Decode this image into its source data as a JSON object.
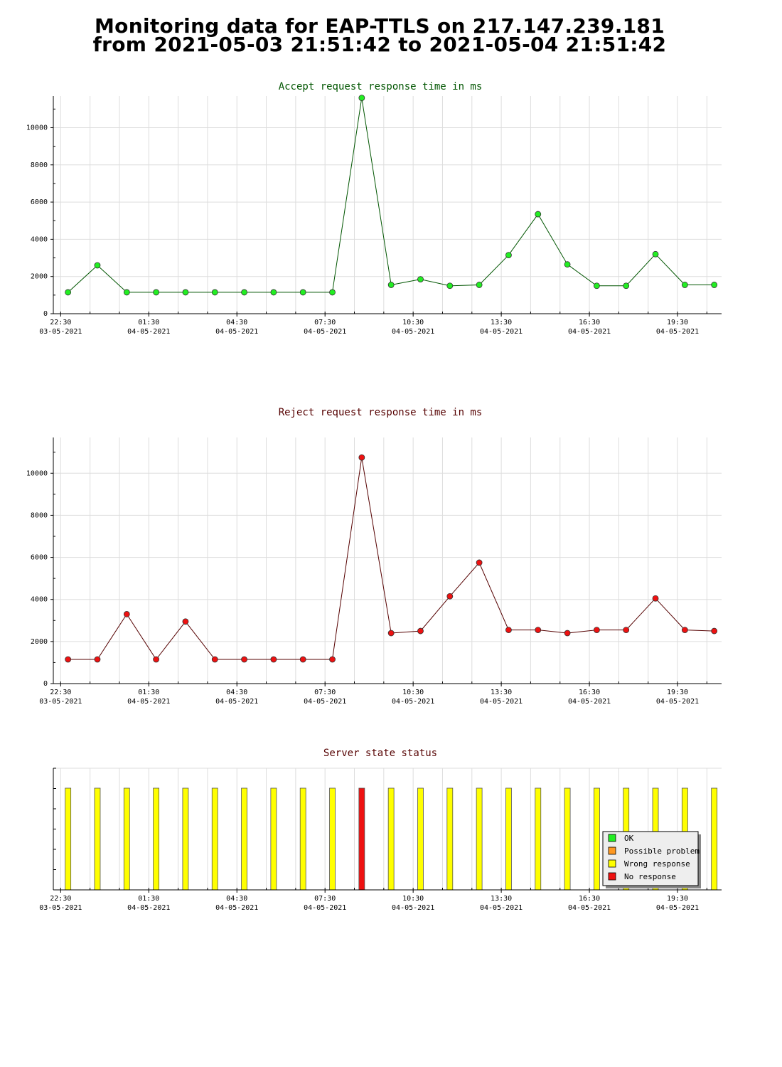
{
  "header": {
    "title_line1": "Monitoring data for EAP-TTLS on 217.147.239.181",
    "title_line2": "from 2021-05-03 21:51:42 to 2021-05-04 21:51:42"
  },
  "colors": {
    "accept_point": "#22ee22",
    "accept_line": "#005500",
    "accept_title": "#005500",
    "reject_point": "#ee1111",
    "reject_line": "#550000",
    "reject_title": "#550000",
    "state_title": "#550000",
    "grid": "#dddddd",
    "ok": "#22ee22",
    "possible_problem": "#ff9922",
    "wrong_response": "#ffff00",
    "no_response": "#ee1111"
  },
  "x_axis": {
    "ticks": [
      {
        "time": "22:30",
        "date": "03-05-2021",
        "hour": 22.5
      },
      {
        "time": "01:30",
        "date": "04-05-2021",
        "hour": 25.5
      },
      {
        "time": "04:30",
        "date": "04-05-2021",
        "hour": 28.5
      },
      {
        "time": "07:30",
        "date": "04-05-2021",
        "hour": 31.5
      },
      {
        "time": "10:30",
        "date": "04-05-2021",
        "hour": 34.5
      },
      {
        "time": "13:30",
        "date": "04-05-2021",
        "hour": 37.5
      },
      {
        "time": "16:30",
        "date": "04-05-2021",
        "hour": 40.5
      },
      {
        "time": "19:30",
        "date": "04-05-2021",
        "hour": 43.5
      }
    ]
  },
  "chart_data": [
    {
      "type": "line",
      "title": "Accept request response time in ms",
      "ylim": [
        0,
        11700
      ],
      "yticks": [
        0,
        2000,
        4000,
        6000,
        8000,
        10000
      ],
      "grid": true,
      "x": [
        22.75,
        23.75,
        24.75,
        25.75,
        26.75,
        27.75,
        28.75,
        29.75,
        30.75,
        31.75,
        32.75,
        33.75,
        34.75,
        35.75,
        36.75,
        37.75,
        38.75,
        39.75,
        40.75,
        41.75,
        42.75,
        43.75,
        44.75
      ],
      "values": [
        1150,
        2600,
        1150,
        1150,
        1150,
        1150,
        1150,
        1150,
        1150,
        1150,
        11600,
        1550,
        1850,
        1500,
        1550,
        3150,
        5350,
        2650,
        1500,
        1500,
        3200,
        1550,
        1550
      ]
    },
    {
      "type": "line",
      "title": "Reject request response time in ms",
      "ylim": [
        0,
        11700
      ],
      "yticks": [
        0,
        2000,
        4000,
        6000,
        8000,
        10000
      ],
      "grid": true,
      "x": [
        22.75,
        23.75,
        24.75,
        25.75,
        26.75,
        27.75,
        28.75,
        29.75,
        30.75,
        31.75,
        32.75,
        33.75,
        34.75,
        35.75,
        36.75,
        37.75,
        38.75,
        39.75,
        40.75,
        41.75,
        42.75,
        43.75,
        44.75
      ],
      "values": [
        1150,
        1150,
        3300,
        1150,
        2950,
        1150,
        1150,
        1150,
        1150,
        1150,
        10750,
        2400,
        2500,
        4150,
        5750,
        2550,
        2550,
        2400,
        2550,
        2550,
        4050,
        2550,
        2500
      ]
    },
    {
      "type": "bar",
      "title": "Server state status",
      "grid": true,
      "x": [
        22.75,
        23.75,
        24.75,
        25.75,
        26.75,
        27.75,
        28.75,
        29.75,
        30.75,
        31.75,
        32.75,
        33.75,
        34.75,
        35.75,
        36.75,
        37.75,
        38.75,
        39.75,
        40.75,
        41.75,
        42.75,
        43.75,
        44.75
      ],
      "states": [
        "wrong_response",
        "wrong_response",
        "wrong_response",
        "wrong_response",
        "wrong_response",
        "wrong_response",
        "wrong_response",
        "wrong_response",
        "wrong_response",
        "wrong_response",
        "no_response",
        "wrong_response",
        "wrong_response",
        "wrong_response",
        "wrong_response",
        "wrong_response",
        "wrong_response",
        "wrong_response",
        "wrong_response",
        "wrong_response",
        "wrong_response",
        "wrong_response",
        "wrong_response"
      ],
      "legend": [
        {
          "key": "ok",
          "label": "OK"
        },
        {
          "key": "possible_problem",
          "label": "Possible problem"
        },
        {
          "key": "wrong_response",
          "label": "Wrong response"
        },
        {
          "key": "no_response",
          "label": "No response"
        }
      ],
      "legend_position": "bottom-right"
    }
  ]
}
